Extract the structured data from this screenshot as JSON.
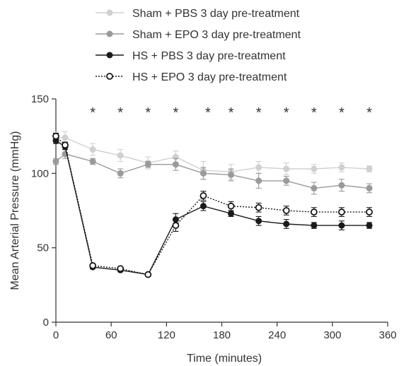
{
  "chart_data": {
    "type": "line",
    "title": "",
    "xlabel": "Time (minutes)",
    "ylabel": "Mean Arterial Pressure  (mmHg)",
    "xlim": [
      0,
      360
    ],
    "ylim": [
      0,
      150
    ],
    "xticks": [
      0,
      60,
      120,
      180,
      240,
      300,
      360
    ],
    "yticks": [
      0,
      50,
      100,
      150
    ],
    "grid": false,
    "legend_position": "top",
    "significance_marker": "*",
    "significance_x": [
      40,
      70,
      100,
      130,
      165,
      190,
      220,
      250,
      280,
      310,
      340
    ],
    "significance_y": 142,
    "series": [
      {
        "name": "Sham + PBS 3 day pre-treatment",
        "color": "#d0d0d0",
        "marker": "filled-circle",
        "line_style": "solid",
        "x": [
          0,
          10,
          40,
          70,
          100,
          130,
          160,
          190,
          220,
          250,
          280,
          310,
          340
        ],
        "y": [
          124,
          124,
          116,
          112,
          107,
          111,
          102,
          101,
          104,
          103,
          103,
          104,
          103
        ],
        "err": [
          4,
          4,
          4,
          4,
          4,
          4,
          6,
          5,
          4,
          4,
          3,
          3,
          2
        ]
      },
      {
        "name": "Sham + EPO 3 day pre-treatment",
        "color": "#9a9a9a",
        "marker": "filled-circle",
        "line_style": "solid",
        "x": [
          0,
          10,
          40,
          70,
          100,
          130,
          160,
          190,
          220,
          250,
          280,
          310,
          340
        ],
        "y": [
          108,
          113,
          108,
          100,
          106,
          106,
          100,
          99,
          95,
          95,
          90,
          92,
          90
        ],
        "err": [
          2,
          3,
          2,
          3,
          2,
          4,
          4,
          4,
          5,
          3,
          4,
          4,
          3
        ]
      },
      {
        "name": "HS + PBS 3 day pre-treatment",
        "color": "#1a1a1a",
        "marker": "filled-circle",
        "line_style": "solid",
        "x": [
          0,
          10,
          40,
          70,
          100,
          130,
          160,
          190,
          220,
          250,
          280,
          310,
          340
        ],
        "y": [
          122,
          118,
          37,
          35,
          32,
          69,
          78,
          73,
          68,
          66,
          65,
          65,
          65
        ],
        "err": [
          2,
          2,
          1,
          1,
          1,
          4,
          3,
          2,
          3,
          3,
          2,
          3,
          2
        ]
      },
      {
        "name": "HS + EPO 3 day pre-treatment",
        "color": "#1a1a1a",
        "marker": "open-circle",
        "line_style": "dotted",
        "x": [
          0,
          10,
          40,
          70,
          100,
          130,
          160,
          190,
          220,
          250,
          280,
          310,
          340
        ],
        "y": [
          125,
          119,
          38,
          36,
          32,
          65,
          85,
          78,
          77,
          75,
          74,
          74,
          74
        ],
        "err": [
          2,
          2,
          1,
          1,
          1,
          4,
          3,
          3,
          3,
          3,
          3,
          3,
          3
        ]
      }
    ]
  }
}
